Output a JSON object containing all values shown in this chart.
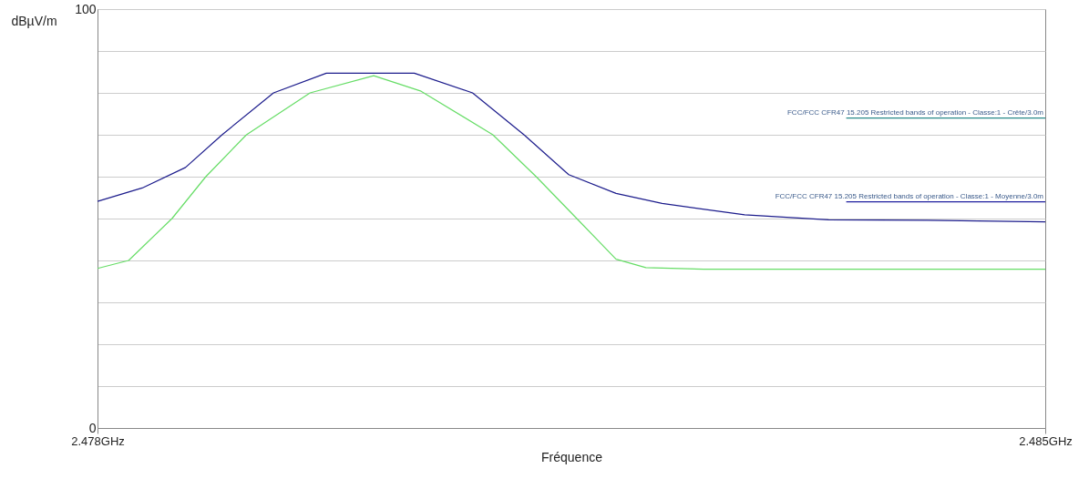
{
  "chart_data": {
    "type": "line",
    "xlabel": "Fréquence",
    "ylabel": "dBµV/m",
    "xlim": [
      2.478,
      2.485
    ],
    "ylim": [
      0,
      100
    ],
    "xticks": [
      {
        "value": 2.478,
        "label": "2.478GHz"
      },
      {
        "value": 2.485,
        "label": "2.485GHz"
      }
    ],
    "yticks": [
      0,
      {
        "value": 10,
        "label": null
      },
      {
        "value": 20,
        "label": null
      },
      {
        "value": 30,
        "label": null
      },
      {
        "value": 40,
        "label": null
      },
      {
        "value": 50,
        "label": null
      },
      {
        "value": 60,
        "label": null
      },
      {
        "value": 70,
        "label": null
      },
      {
        "value": 80,
        "label": null
      },
      {
        "value": 90,
        "label": null
      },
      100
    ],
    "grid": "y",
    "line_style": "solid",
    "marker": "none",
    "series": [
      {
        "color": "#1c1c8c",
        "x": [
          2.478,
          2.47833,
          2.47865,
          2.47892,
          2.4793,
          2.47969,
          2.48034,
          2.48077,
          2.48115,
          2.48148,
          2.48183,
          2.48217,
          2.48278,
          2.4834,
          2.48413,
          2.485
        ],
        "values": [
          54.1,
          57.3,
          62.2,
          70,
          80,
          84.7,
          84.7,
          80,
          70,
          60.5,
          56,
          53.6,
          50.9,
          49.7,
          49.6,
          49.2
        ]
      },
      {
        "color": "#66dd66",
        "x": [
          2.478,
          2.47823,
          2.47855,
          2.4788,
          2.4791,
          2.47957,
          2.48004,
          2.48039,
          2.48092,
          2.48124,
          2.48154,
          2.48183,
          2.48205,
          2.48248,
          2.485
        ],
        "values": [
          38.1,
          40,
          50,
          60,
          70,
          80,
          84.1,
          80.4,
          70,
          60,
          50,
          40.3,
          38.3,
          37.9,
          37.9
        ]
      },
      {
        "color": "#2a8a8a",
        "x": [
          2.48353,
          2.485
        ],
        "values": [
          74,
          74
        ]
      },
      {
        "color": "#2020a0",
        "x": [
          2.48353,
          2.485
        ],
        "values": [
          54,
          54
        ]
      }
    ],
    "annotations": [
      {
        "text": "FCC/FCC CFR47 15.205 Restricted bands of operation - Classe:1 - Crête/3.0m",
        "x": 2.485,
        "y": 74
      },
      {
        "text": "FCC/FCC CFR47 15.205 Restricted bands of operation - Classe:1 - Moyenne/3.0m",
        "x": 2.485,
        "y": 54
      }
    ]
  }
}
